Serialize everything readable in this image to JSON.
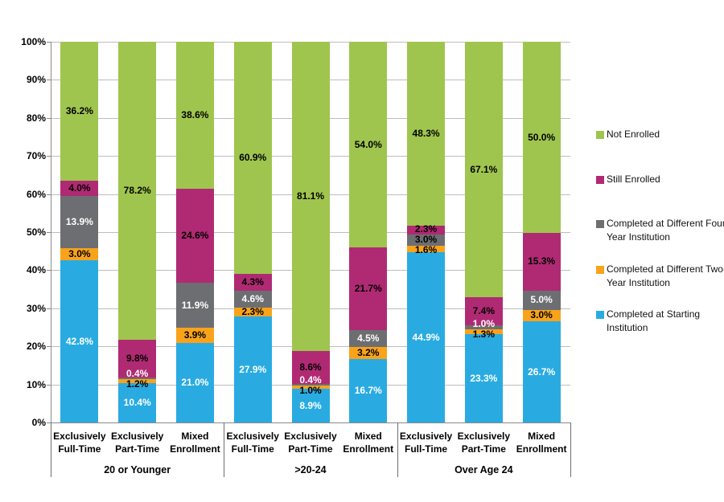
{
  "chart_data": {
    "type": "bar",
    "subtype": "percent-stacked-column",
    "title": "",
    "legend_position": "right",
    "grid": "horizontal",
    "value_suffix": "%",
    "y_axis": {
      "min": 0,
      "max": 100,
      "tick_labels": [
        "0%",
        "10%",
        "20%",
        "30%",
        "40%",
        "50%",
        "60%",
        "70%",
        "80%",
        "90%",
        "100%"
      ]
    },
    "groups": [
      "20 or Younger",
      ">20-24",
      "Over Age 24"
    ],
    "categories": [
      "Exclusively Full-Time",
      "Exclusively Part-Time",
      "Mixed Enrollment"
    ],
    "series": [
      {
        "name": "Completed at Starting Institution",
        "color": "#29ABE2",
        "label_color": "#FFFFFF"
      },
      {
        "name": "Completed at Different Two-Year Institution",
        "color": "#F9A31B",
        "label_color": "#000000"
      },
      {
        "name": "Completed at Different Four-Year Institution",
        "color": "#6D6E71",
        "label_color": "#FFFFFF"
      },
      {
        "name": "Still Enrolled",
        "color": "#B02A73",
        "label_color": "#000000"
      },
      {
        "name": "Not Enrolled",
        "color": "#9FC54E",
        "label_color": "#000000"
      }
    ],
    "legend_order_series_indexes": [
      4,
      3,
      2,
      1,
      0
    ],
    "bars": [
      {
        "group": "20 or Younger",
        "category": "Exclusively Full-Time",
        "values": [
          42.8,
          3.0,
          13.9,
          4.0,
          36.2
        ]
      },
      {
        "group": "20 or Younger",
        "category": "Exclusively Part-Time",
        "values": [
          10.4,
          1.2,
          0.4,
          9.8,
          78.2
        ]
      },
      {
        "group": "20 or Younger",
        "category": "Mixed Enrollment",
        "values": [
          21.0,
          3.9,
          11.9,
          24.6,
          38.6
        ]
      },
      {
        "group": ">20-24",
        "category": "Exclusively Full-Time",
        "values": [
          27.9,
          2.3,
          4.6,
          4.3,
          60.9
        ]
      },
      {
        "group": ">20-24",
        "category": "Exclusively Part-Time",
        "values": [
          8.9,
          1.0,
          0.4,
          8.6,
          81.1
        ]
      },
      {
        "group": ">20-24",
        "category": "Mixed Enrollment",
        "values": [
          16.7,
          3.2,
          4.5,
          21.7,
          54.0
        ]
      },
      {
        "group": "Over Age 24",
        "category": "Exclusively Full-Time",
        "values": [
          44.9,
          1.6,
          3.0,
          2.3,
          48.3
        ],
        "label_color_overrides": {
          "2": "#000000"
        }
      },
      {
        "group": "Over Age 24",
        "category": "Exclusively Part-Time",
        "values": [
          23.3,
          1.3,
          1.0,
          7.4,
          67.1
        ]
      },
      {
        "group": "Over Age 24",
        "category": "Mixed Enrollment",
        "values": [
          26.7,
          3.0,
          5.0,
          15.3,
          50.0
        ]
      }
    ]
  }
}
